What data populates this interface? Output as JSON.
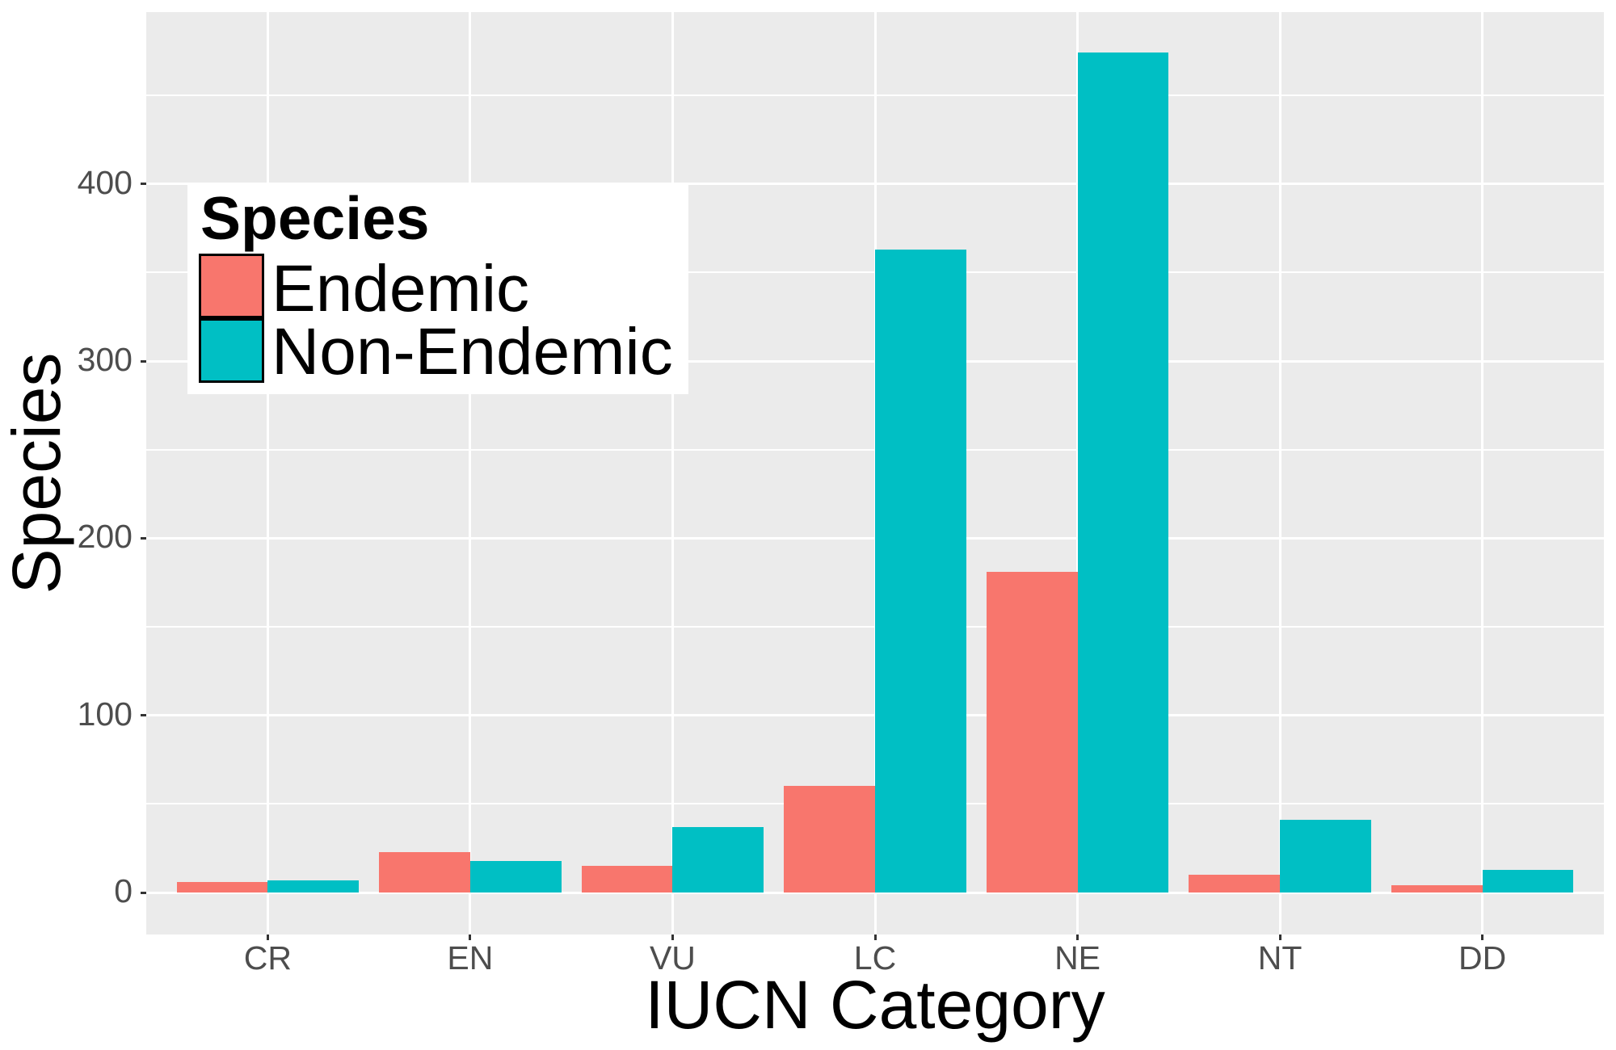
{
  "chart_data": {
    "type": "bar",
    "title": "",
    "xlabel": "IUCN Category",
    "ylabel": "Species",
    "categories": [
      "CR",
      "EN",
      "VU",
      "LC",
      "NE",
      "NT",
      "DD"
    ],
    "series": [
      {
        "name": "Endemic",
        "color": "#F8766D",
        "values": [
          6,
          23,
          15,
          60,
          181,
          10,
          4
        ]
      },
      {
        "name": "Non-Endemic",
        "color": "#00BFC4",
        "values": [
          7,
          18,
          37,
          363,
          474,
          41,
          13
        ]
      }
    ],
    "yticks": [
      0,
      100,
      200,
      300,
      400
    ],
    "ylim": [
      -23.7,
      497
    ],
    "grid": true,
    "legend": {
      "title": "Species",
      "position": "inside-top-left"
    },
    "background": "#EBEBEB"
  },
  "legend": {
    "title": "Species",
    "items": [
      {
        "label": "Endemic",
        "color": "#F8766D"
      },
      {
        "label": "Non-Endemic",
        "color": "#00BFC4"
      }
    ]
  },
  "axes": {
    "x_title": "IUCN Category",
    "y_title": "Species",
    "x_ticks": [
      "CR",
      "EN",
      "VU",
      "LC",
      "NE",
      "NT",
      "DD"
    ],
    "y_ticks": [
      "0",
      "100",
      "200",
      "300",
      "400"
    ]
  }
}
